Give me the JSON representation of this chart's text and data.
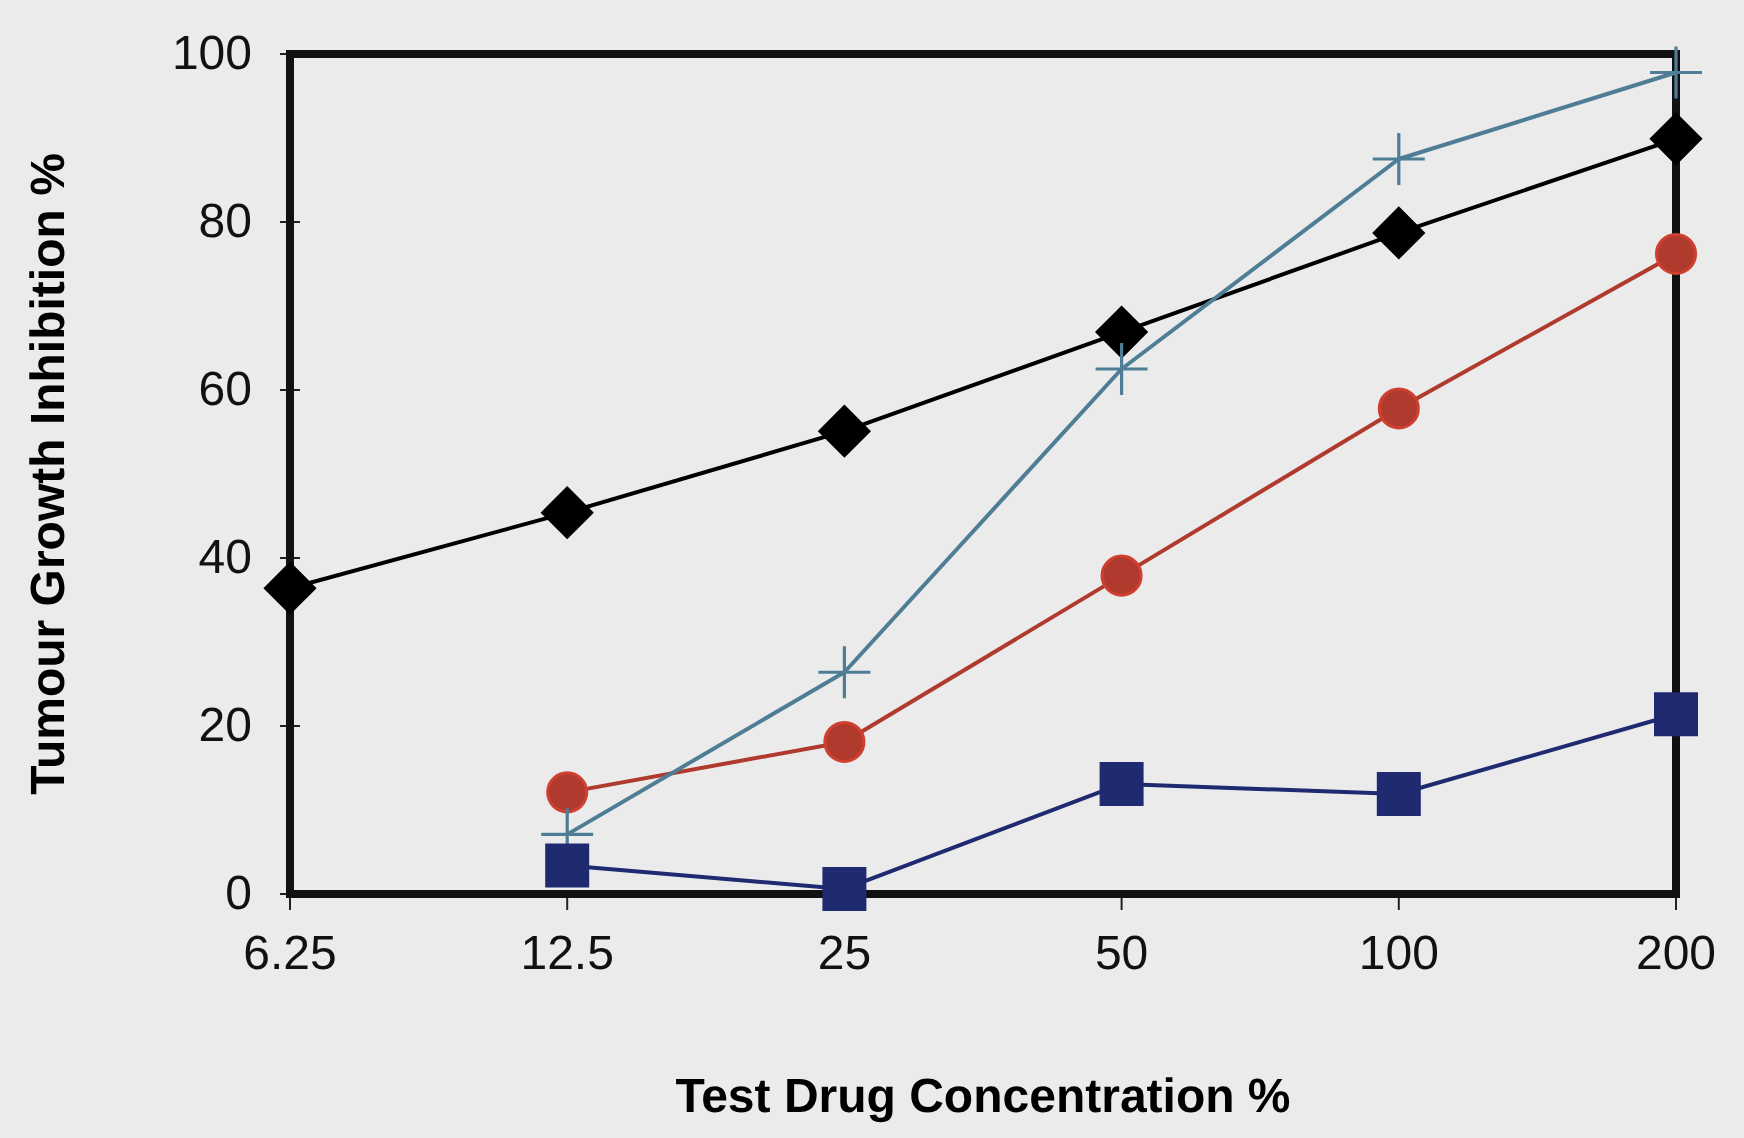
{
  "chart_data": {
    "type": "line",
    "xlabel": "Test Drug Concentration %",
    "ylabel": "Tumour Growth Inhibition %",
    "categories": [
      "6.25",
      "12.5",
      "25",
      "50",
      "100",
      "200"
    ],
    "ylim": [
      0,
      100
    ],
    "yticks": [
      0,
      20,
      40,
      60,
      80,
      100
    ],
    "grid": false,
    "series": [
      {
        "color": "#000000",
        "marker": "diamond",
        "values": [
          36.4,
          45.4,
          55.1,
          66.9,
          78.7,
          89.9
        ]
      },
      {
        "color": "#b03a2e",
        "marker": "circle",
        "values": [
          null,
          12.1,
          18.1,
          37.9,
          57.8,
          76.2
        ]
      },
      {
        "color": "#4f7d96",
        "marker": "cross",
        "values": [
          null,
          7.1,
          26.4,
          62.5,
          87.5,
          97.8
        ]
      },
      {
        "color": "#1f2a70",
        "marker": "square",
        "values": [
          null,
          3.4,
          0.6,
          13.1,
          11.9,
          21.4
        ]
      }
    ]
  }
}
